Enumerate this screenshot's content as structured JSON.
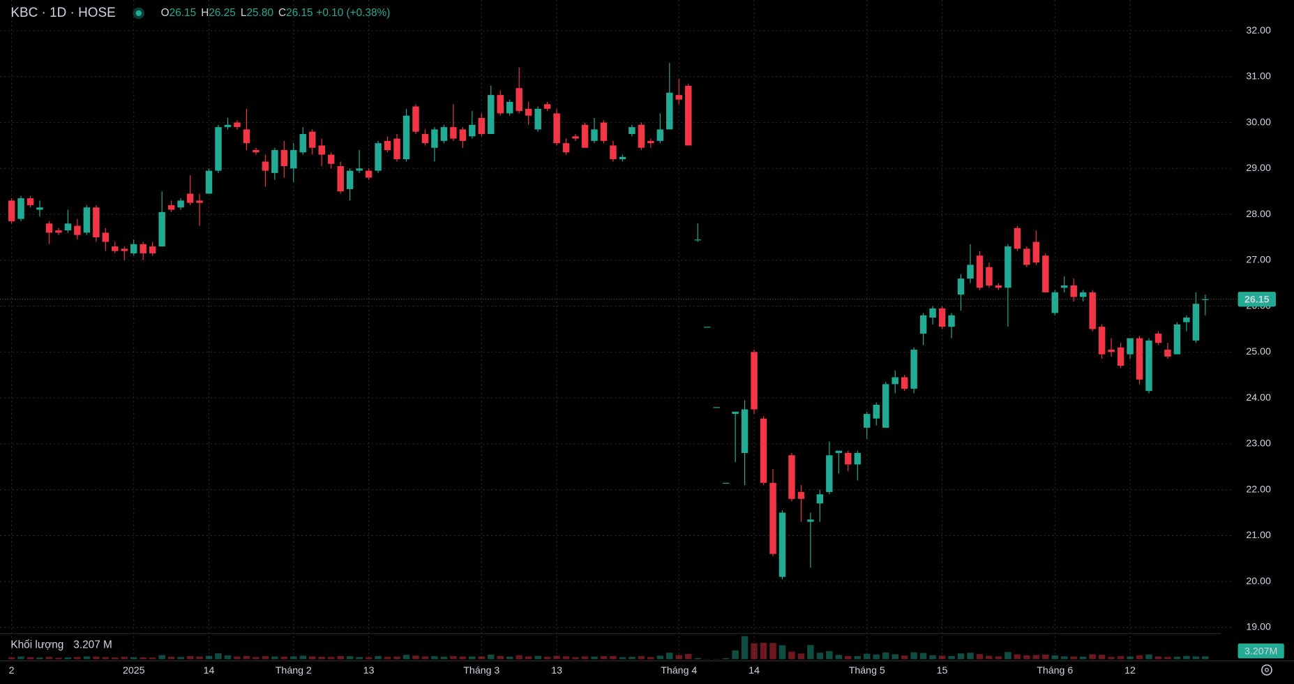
{
  "chart_data": {
    "type": "candlestick",
    "header": {
      "symbol": "KBC · 1D · HOSE",
      "fields": [
        {
          "key": "O",
          "value": "26.15"
        },
        {
          "key": "H",
          "value": "26.25"
        },
        {
          "key": "L",
          "value": "25.80"
        },
        {
          "key": "C",
          "value": "26.15"
        }
      ],
      "change": "+0.10 (+0.38%)"
    },
    "volume_title": "Khối lượng",
    "volume_legend": "3.207 M",
    "volume_tag": "3.207M",
    "last_price": {
      "value": 26.15,
      "label": "26.15"
    },
    "colors": {
      "up": "#22ab94",
      "down": "#f23645"
    },
    "grid": true,
    "ylim": [
      18.9,
      32.67
    ],
    "yticks": [
      {
        "value": 19,
        "label": "19.00"
      },
      {
        "value": 20,
        "label": "20.00"
      },
      {
        "value": 21,
        "label": "21.00"
      },
      {
        "value": 22,
        "label": "22.00"
      },
      {
        "value": 23,
        "label": "23.00"
      },
      {
        "value": 24,
        "label": "24.00"
      },
      {
        "value": 25,
        "label": "25.00"
      },
      {
        "value": 26,
        "label": "26.00"
      },
      {
        "value": 27,
        "label": "27.00"
      },
      {
        "value": 28,
        "label": "28.00"
      },
      {
        "value": 29,
        "label": "29.00"
      },
      {
        "value": 30,
        "label": "30.00"
      },
      {
        "value": 31,
        "label": "31.00"
      },
      {
        "value": 32,
        "label": "32.00"
      }
    ],
    "categories": [
      "2",
      null,
      null,
      null,
      null,
      null,
      null,
      null,
      null,
      null,
      null,
      null,
      null,
      "2025",
      null,
      null,
      null,
      null,
      null,
      null,
      null,
      "14",
      null,
      null,
      null,
      null,
      null,
      null,
      null,
      null,
      "Tháng 2",
      null,
      null,
      null,
      null,
      null,
      null,
      null,
      "13",
      null,
      null,
      null,
      null,
      null,
      null,
      null,
      null,
      null,
      null,
      null,
      "Tháng 3",
      null,
      null,
      null,
      null,
      null,
      null,
      null,
      "13",
      null,
      null,
      null,
      null,
      null,
      null,
      null,
      null,
      null,
      null,
      null,
      null,
      "Tháng 4",
      null,
      null,
      null,
      null,
      null,
      null,
      null,
      "14",
      null,
      null,
      null,
      null,
      null,
      null,
      null,
      null,
      null,
      null,
      null,
      "Tháng 5",
      null,
      null,
      null,
      null,
      null,
      null,
      null,
      "15",
      null,
      null,
      null,
      null,
      null,
      null,
      null,
      null,
      null,
      null,
      null,
      "Tháng 6",
      null,
      null,
      null,
      null,
      null,
      null,
      null,
      "12",
      null,
      null,
      null,
      null,
      null,
      null,
      null,
      null
    ],
    "open": [
      28.3,
      27.9,
      28.35,
      28.1,
      27.8,
      27.65,
      27.65,
      27.75,
      27.6,
      28.15,
      27.6,
      27.3,
      27.25,
      27.15,
      27.35,
      27.3,
      27.3,
      28.2,
      28.15,
      28.45,
      28.3,
      28.45,
      28.95,
      29.9,
      30.0,
      29.85,
      29.4,
      29.15,
      28.9,
      29.4,
      29.0,
      29.35,
      29.8,
      29.5,
      29.3,
      29.05,
      28.55,
      28.95,
      28.95,
      28.95,
      29.6,
      29.65,
      29.2,
      30.35,
      29.75,
      29.45,
      29.6,
      29.9,
      29.85,
      29.7,
      30.1,
      29.75,
      30.6,
      30.2,
      30.75,
      30.3,
      29.85,
      30.4,
      30.2,
      29.55,
      29.7,
      29.95,
      29.6,
      30.0,
      29.5,
      29.2,
      29.75,
      29.95,
      29.6,
      29.6,
      29.85,
      30.6,
      30.8,
      27.45,
      25.55,
      23.8,
      22.15,
      23.65,
      22.8,
      25.0,
      23.55,
      22.15,
      20.1,
      22.75,
      21.95,
      21.3,
      21.7,
      21.95,
      22.8,
      22.8,
      22.55,
      23.35,
      23.55,
      23.35,
      24.3,
      24.45,
      24.2,
      25.4,
      25.75,
      25.95,
      25.55,
      26.25,
      26.6,
      27.1,
      26.85,
      26.45,
      26.4,
      27.7,
      27.25,
      27.4,
      27.1,
      25.85,
      26.4,
      26.45,
      26.2,
      26.3,
      25.55,
      25.05,
      25.1,
      24.95,
      25.3,
      24.15,
      25.4,
      25.05,
      24.95,
      25.65,
      25.25,
      26.15
    ],
    "high": [
      28.35,
      28.4,
      28.4,
      28.3,
      27.85,
      27.7,
      28.1,
      27.9,
      28.2,
      28.2,
      27.7,
      27.4,
      27.3,
      27.45,
      27.4,
      27.4,
      28.5,
      28.3,
      28.35,
      28.85,
      28.45,
      29.0,
      29.95,
      30.1,
      30.05,
      30.3,
      29.45,
      29.3,
      29.45,
      29.6,
      29.55,
      29.9,
      29.85,
      29.65,
      29.35,
      29.15,
      29.0,
      29.4,
      29.0,
      29.6,
      29.7,
      29.75,
      30.3,
      30.4,
      29.85,
      29.9,
      29.95,
      30.4,
      29.9,
      30.25,
      30.2,
      30.8,
      30.7,
      30.5,
      31.2,
      30.45,
      30.35,
      30.45,
      30.3,
      29.65,
      29.75,
      30.0,
      30.1,
      30.05,
      29.6,
      29.3,
      29.95,
      30.0,
      29.65,
      30.2,
      31.3,
      30.95,
      30.85,
      27.8,
      25.55,
      23.8,
      22.15,
      23.7,
      23.95,
      25.05,
      23.6,
      22.45,
      21.55,
      22.8,
      22.1,
      21.5,
      22.0,
      23.05,
      22.85,
      22.85,
      22.85,
      23.7,
      23.9,
      24.35,
      24.6,
      24.5,
      25.1,
      25.85,
      26.0,
      26.0,
      25.85,
      26.7,
      27.35,
      27.2,
      26.95,
      26.5,
      27.35,
      27.75,
      27.3,
      27.65,
      27.15,
      26.35,
      26.65,
      26.6,
      26.35,
      26.35,
      25.6,
      25.3,
      25.2,
      25.3,
      25.35,
      25.3,
      25.45,
      25.2,
      25.65,
      25.8,
      26.3,
      26.25
    ],
    "low": [
      27.8,
      27.85,
      28.15,
      27.95,
      27.35,
      27.55,
      27.6,
      27.45,
      27.55,
      27.4,
      27.2,
      27.15,
      27.0,
      27.1,
      27.0,
      27.1,
      27.3,
      28.05,
      28.1,
      28.2,
      27.75,
      28.45,
      28.9,
      29.85,
      29.85,
      29.4,
      29.3,
      28.6,
      28.75,
      28.8,
      28.7,
      29.3,
      29.3,
      29.05,
      29.0,
      28.45,
      28.3,
      28.9,
      28.75,
      28.9,
      29.35,
      29.15,
      29.15,
      29.75,
      29.5,
      29.15,
      29.55,
      29.6,
      29.45,
      29.65,
      29.7,
      29.75,
      30.15,
      30.15,
      30.2,
      29.95,
      29.8,
      30.25,
      29.5,
      29.3,
      29.6,
      29.45,
      29.55,
      29.55,
      29.15,
      29.15,
      29.7,
      29.4,
      29.45,
      29.55,
      29.85,
      30.4,
      29.5,
      27.4,
      25.55,
      23.8,
      22.15,
      22.6,
      22.1,
      23.65,
      22.1,
      20.55,
      20.05,
      21.75,
      21.3,
      20.3,
      21.3,
      21.9,
      22.35,
      22.4,
      22.2,
      23.1,
      23.4,
      23.35,
      24.1,
      24.15,
      24.1,
      25.15,
      25.6,
      25.5,
      25.3,
      25.9,
      26.5,
      26.35,
      26.4,
      26.35,
      25.55,
      27.2,
      26.85,
      26.9,
      26.3,
      25.8,
      26.3,
      26.1,
      26.1,
      25.45,
      24.85,
      24.9,
      24.65,
      24.85,
      24.3,
      24.1,
      25.15,
      24.85,
      24.95,
      25.45,
      25.2,
      25.8
    ],
    "close": [
      27.85,
      28.35,
      28.2,
      28.15,
      27.6,
      27.6,
      27.8,
      27.55,
      28.15,
      27.5,
      27.4,
      27.2,
      27.2,
      27.35,
      27.15,
      27.15,
      28.05,
      28.1,
      28.3,
      28.25,
      28.25,
      28.95,
      29.9,
      29.95,
      29.9,
      29.55,
      29.35,
      28.95,
      29.4,
      29.05,
      29.4,
      29.75,
      29.45,
      29.3,
      29.1,
      28.5,
      28.95,
      29.0,
      28.8,
      29.55,
      29.4,
      29.2,
      30.15,
      29.8,
      29.55,
      29.85,
      29.9,
      29.65,
      29.6,
      29.95,
      29.75,
      30.6,
      30.2,
      30.45,
      30.25,
      30.15,
      30.3,
      30.3,
      29.55,
      29.35,
      29.65,
      29.45,
      29.85,
      29.6,
      29.2,
      29.25,
      29.9,
      29.45,
      29.55,
      29.85,
      30.65,
      30.5,
      29.5,
      27.45,
      25.55,
      23.8,
      22.15,
      23.7,
      23.75,
      23.75,
      22.15,
      20.6,
      21.5,
      21.8,
      21.8,
      21.35,
      21.9,
      22.75,
      22.85,
      22.55,
      22.8,
      23.65,
      23.85,
      24.3,
      24.45,
      24.2,
      25.05,
      25.8,
      25.95,
      25.55,
      25.8,
      26.6,
      26.9,
      26.4,
      26.45,
      26.4,
      27.3,
      27.25,
      26.9,
      26.95,
      26.3,
      26.3,
      26.45,
      26.2,
      26.3,
      25.5,
      24.95,
      25.0,
      24.7,
      25.3,
      24.4,
      25.25,
      25.2,
      24.9,
      25.6,
      25.75,
      26.05,
      26.15
    ],
    "volume": [
      2.1,
      3.0,
      2.2,
      1.8,
      2.5,
      1.6,
      2.0,
      2.4,
      3.1,
      2.8,
      2.3,
      1.9,
      2.6,
      2.2,
      2.0,
      1.8,
      4.5,
      2.6,
      2.4,
      3.5,
      2.9,
      3.8,
      6.5,
      4.2,
      3.0,
      3.6,
      2.5,
      3.4,
      3.0,
      2.8,
      3.2,
      3.9,
      3.1,
      2.7,
      2.5,
      3.6,
      3.3,
      2.4,
      2.2,
      3.5,
      2.6,
      2.9,
      4.8,
      4.0,
      3.1,
      3.3,
      2.7,
      3.4,
      2.9,
      3.0,
      3.2,
      5.1,
      3.6,
      2.8,
      4.4,
      3.0,
      3.7,
      2.6,
      3.8,
      3.2,
      2.3,
      3.1,
      2.9,
      3.4,
      3.5,
      2.2,
      2.6,
      3.3,
      2.4,
      3.9,
      7.2,
      4.6,
      5.8,
      1.2,
      0.3,
      0.4,
      1.1,
      9.8,
      25.5,
      17.6,
      18.2,
      17.9,
      15.4,
      8.3,
      6.2,
      15.6,
      7.1,
      8.9,
      4.8,
      3.6,
      3.4,
      6.0,
      5.2,
      7.4,
      5.5,
      4.1,
      7.6,
      6.9,
      4.4,
      3.9,
      3.5,
      6.4,
      7.1,
      5.6,
      3.8,
      3.1,
      7.9,
      5.3,
      4.2,
      4.6,
      5.1,
      4.3,
      3.2,
      3.0,
      2.8,
      5.4,
      4.9,
      2.6,
      3.3,
      3.0,
      4.4,
      5.2,
      3.1,
      2.5,
      2.8,
      3.6,
      3.1,
      3.207
    ]
  }
}
